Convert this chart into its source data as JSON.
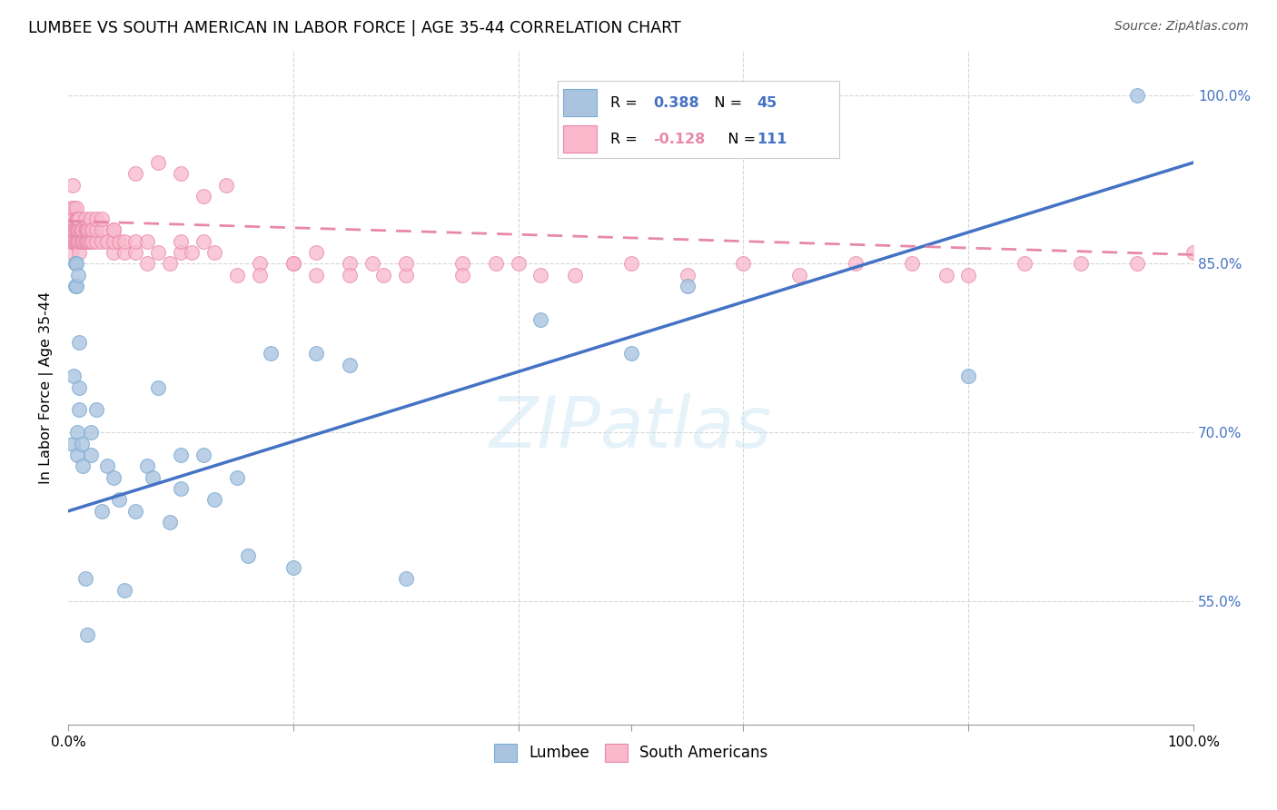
{
  "title": "LUMBEE VS SOUTH AMERICAN IN LABOR FORCE | AGE 35-44 CORRELATION CHART",
  "source": "Source: ZipAtlas.com",
  "ylabel": "In Labor Force | Age 35-44",
  "xlim": [
    0.0,
    1.0
  ],
  "ylim": [
    0.44,
    1.04
  ],
  "yticks": [
    0.55,
    0.7,
    0.85,
    1.0
  ],
  "ytick_labels": [
    "55.0%",
    "70.0%",
    "85.0%",
    "100.0%"
  ],
  "lumbee_color": "#aac4e0",
  "lumbee_edge_color": "#7aaad0",
  "south_american_color": "#f9b8cc",
  "south_american_edge_color": "#e888a8",
  "lumbee_line_color": "#4472c4",
  "south_american_line_color": "#e888a8",
  "background_color": "#ffffff",
  "grid_color": "#cccccc",
  "lumbee_R": "0.388",
  "lumbee_N": "45",
  "south_american_R": "-0.128",
  "south_american_N": "111",
  "r_color": "#4472c4",
  "n_color": "#4472c4",
  "lumbee_scatter_x": [
    0.004,
    0.005,
    0.006,
    0.006,
    0.007,
    0.007,
    0.008,
    0.008,
    0.009,
    0.01,
    0.01,
    0.01,
    0.012,
    0.013,
    0.015,
    0.017,
    0.02,
    0.02,
    0.025,
    0.03,
    0.035,
    0.04,
    0.045,
    0.05,
    0.06,
    0.07,
    0.075,
    0.08,
    0.09,
    0.1,
    0.1,
    0.12,
    0.13,
    0.15,
    0.16,
    0.18,
    0.2,
    0.22,
    0.25,
    0.3,
    0.42,
    0.5,
    0.55,
    0.8,
    0.95
  ],
  "lumbee_scatter_y": [
    0.69,
    0.75,
    0.83,
    0.85,
    0.83,
    0.85,
    0.68,
    0.7,
    0.84,
    0.72,
    0.74,
    0.78,
    0.69,
    0.67,
    0.57,
    0.52,
    0.7,
    0.68,
    0.72,
    0.63,
    0.67,
    0.66,
    0.64,
    0.56,
    0.63,
    0.67,
    0.66,
    0.74,
    0.62,
    0.65,
    0.68,
    0.68,
    0.64,
    0.66,
    0.59,
    0.77,
    0.58,
    0.77,
    0.76,
    0.57,
    0.8,
    0.77,
    0.83,
    0.75,
    1.0
  ],
  "sa_scatter_x": [
    0.002,
    0.002,
    0.003,
    0.003,
    0.003,
    0.004,
    0.004,
    0.004,
    0.005,
    0.005,
    0.005,
    0.005,
    0.006,
    0.006,
    0.007,
    0.007,
    0.007,
    0.007,
    0.008,
    0.008,
    0.008,
    0.009,
    0.009,
    0.009,
    0.01,
    0.01,
    0.01,
    0.01,
    0.011,
    0.011,
    0.012,
    0.012,
    0.013,
    0.013,
    0.014,
    0.015,
    0.015,
    0.015,
    0.016,
    0.016,
    0.017,
    0.017,
    0.018,
    0.018,
    0.019,
    0.02,
    0.02,
    0.02,
    0.022,
    0.022,
    0.025,
    0.025,
    0.025,
    0.03,
    0.03,
    0.03,
    0.035,
    0.04,
    0.04,
    0.04,
    0.045,
    0.05,
    0.05,
    0.06,
    0.06,
    0.07,
    0.07,
    0.08,
    0.09,
    0.1,
    0.1,
    0.11,
    0.12,
    0.13,
    0.15,
    0.17,
    0.2,
    0.22,
    0.25,
    0.27,
    0.3,
    0.35,
    0.4,
    0.45,
    0.5,
    0.55,
    0.6,
    0.65,
    0.7,
    0.75,
    0.78,
    0.8,
    0.85,
    0.9,
    0.95,
    1.0,
    0.42,
    0.38,
    0.35,
    0.3,
    0.28,
    0.25,
    0.22,
    0.2,
    0.17,
    0.14,
    0.12,
    0.1,
    0.08,
    0.06,
    0.04
  ],
  "sa_scatter_y": [
    0.86,
    0.88,
    0.87,
    0.88,
    0.9,
    0.87,
    0.88,
    0.92,
    0.87,
    0.88,
    0.89,
    0.9,
    0.87,
    0.88,
    0.87,
    0.88,
    0.89,
    0.9,
    0.87,
    0.88,
    0.89,
    0.87,
    0.88,
    0.89,
    0.86,
    0.87,
    0.88,
    0.89,
    0.87,
    0.88,
    0.87,
    0.88,
    0.87,
    0.88,
    0.87,
    0.87,
    0.88,
    0.89,
    0.87,
    0.88,
    0.87,
    0.88,
    0.87,
    0.88,
    0.87,
    0.87,
    0.88,
    0.89,
    0.87,
    0.88,
    0.87,
    0.88,
    0.89,
    0.87,
    0.88,
    0.89,
    0.87,
    0.86,
    0.87,
    0.88,
    0.87,
    0.86,
    0.87,
    0.86,
    0.87,
    0.85,
    0.87,
    0.86,
    0.85,
    0.86,
    0.87,
    0.86,
    0.87,
    0.86,
    0.84,
    0.85,
    0.85,
    0.86,
    0.85,
    0.85,
    0.84,
    0.85,
    0.85,
    0.84,
    0.85,
    0.84,
    0.85,
    0.84,
    0.85,
    0.85,
    0.84,
    0.84,
    0.85,
    0.85,
    0.85,
    0.86,
    0.84,
    0.85,
    0.84,
    0.85,
    0.84,
    0.84,
    0.84,
    0.85,
    0.84,
    0.92,
    0.91,
    0.93,
    0.94,
    0.93,
    0.88
  ],
  "lumbee_line_x0": 0.0,
  "lumbee_line_x1": 1.0,
  "lumbee_line_y0": 0.63,
  "lumbee_line_y1": 0.94,
  "sa_line_x0": 0.0,
  "sa_line_x1": 1.0,
  "sa_line_y0": 0.888,
  "sa_line_y1": 0.858
}
